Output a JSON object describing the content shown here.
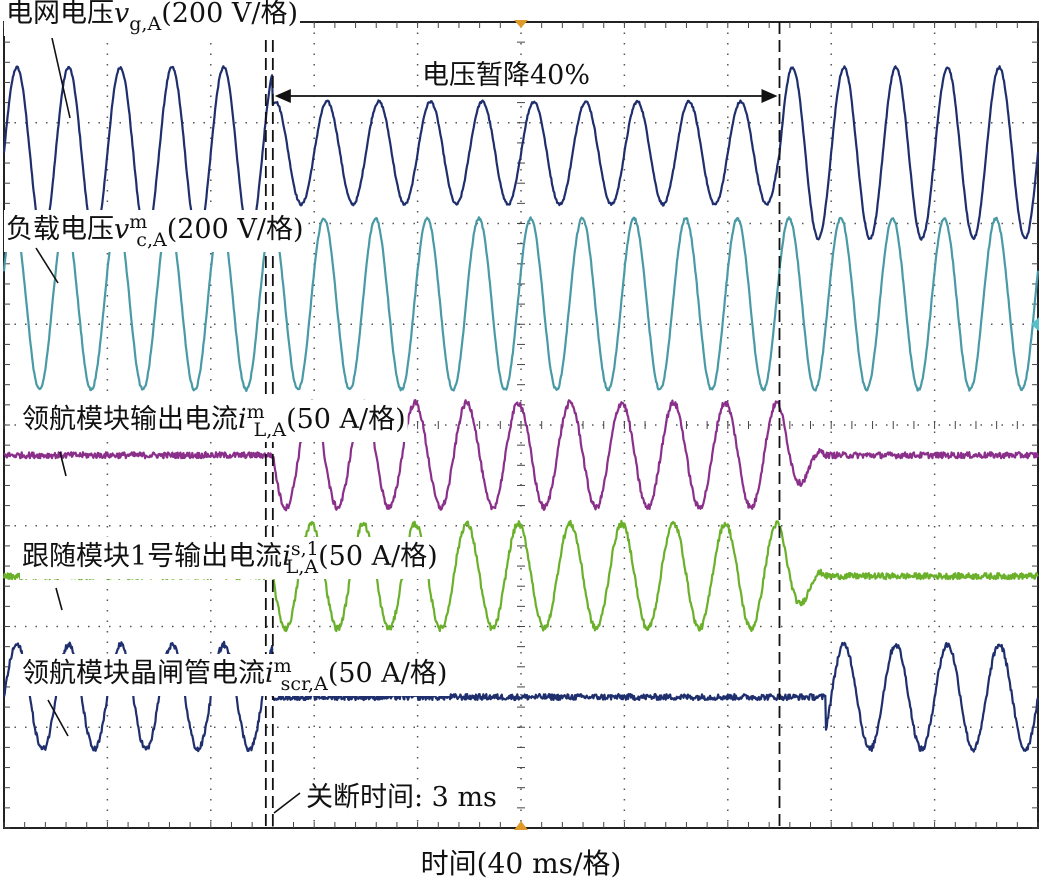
{
  "chart_data": {
    "type": "line",
    "xlabel": "时间(40 ms/格)",
    "divisions": {
      "x": 10,
      "y": 8
    },
    "series": [
      {
        "label_main": "电网电压",
        "label_var": "v",
        "label_sup": "",
        "label_sub": "g,A",
        "label_unit": "(200 V/格)",
        "color": "#1f2f6e",
        "center_div": 1.3,
        "pre_amp": 0.85,
        "sag_amp": 0.51,
        "post_amp": 0.85,
        "kind": "grid"
      },
      {
        "label_main": "负载电压",
        "label_var": "v",
        "label_sup": "m",
        "label_sub": "c,A",
        "label_unit": "(200 V/格)",
        "color": "#4a9aa6",
        "center_div": 2.8,
        "pre_amp": 0.85,
        "sag_amp": 0.85,
        "post_amp": 0.85,
        "kind": "load"
      },
      {
        "label_main": "领航模块输出电流",
        "label_var": "i",
        "label_sup": "m",
        "label_sub": "L,A",
        "label_unit": "(50 A/格)",
        "color": "#8a2f8a",
        "center_div": 4.3,
        "pre_amp": 0.0,
        "sag_amp": 0.52,
        "post_amp": 0.0,
        "kind": "leader"
      },
      {
        "label_main": "跟随模块1号输出电流",
        "label_var": "i",
        "label_sup": "s,1",
        "label_sub": "L,A",
        "label_unit": "(50 A/格)",
        "color": "#6ab02a",
        "center_div": 5.5,
        "pre_amp": 0.0,
        "sag_amp": 0.52,
        "post_amp": 0.0,
        "kind": "follower"
      },
      {
        "label_main": "领航模块晶闸管电流",
        "label_var": "i",
        "label_sup": "m",
        "label_sub": "scr,A",
        "label_unit": "(50 A/格)",
        "color": "#1f2f6e",
        "center_div": 6.7,
        "pre_amp": 0.52,
        "sag_amp": 0.0,
        "post_amp": 0.52,
        "kind": "scr"
      }
    ],
    "sag_start_div": 2.6,
    "sag_end_div": 7.5,
    "scr_off_end_div": 7.95,
    "period_div": 0.5,
    "annotations": {
      "sag": "电压暂降40%",
      "turnoff": "关断时间: 3 ms"
    }
  }
}
